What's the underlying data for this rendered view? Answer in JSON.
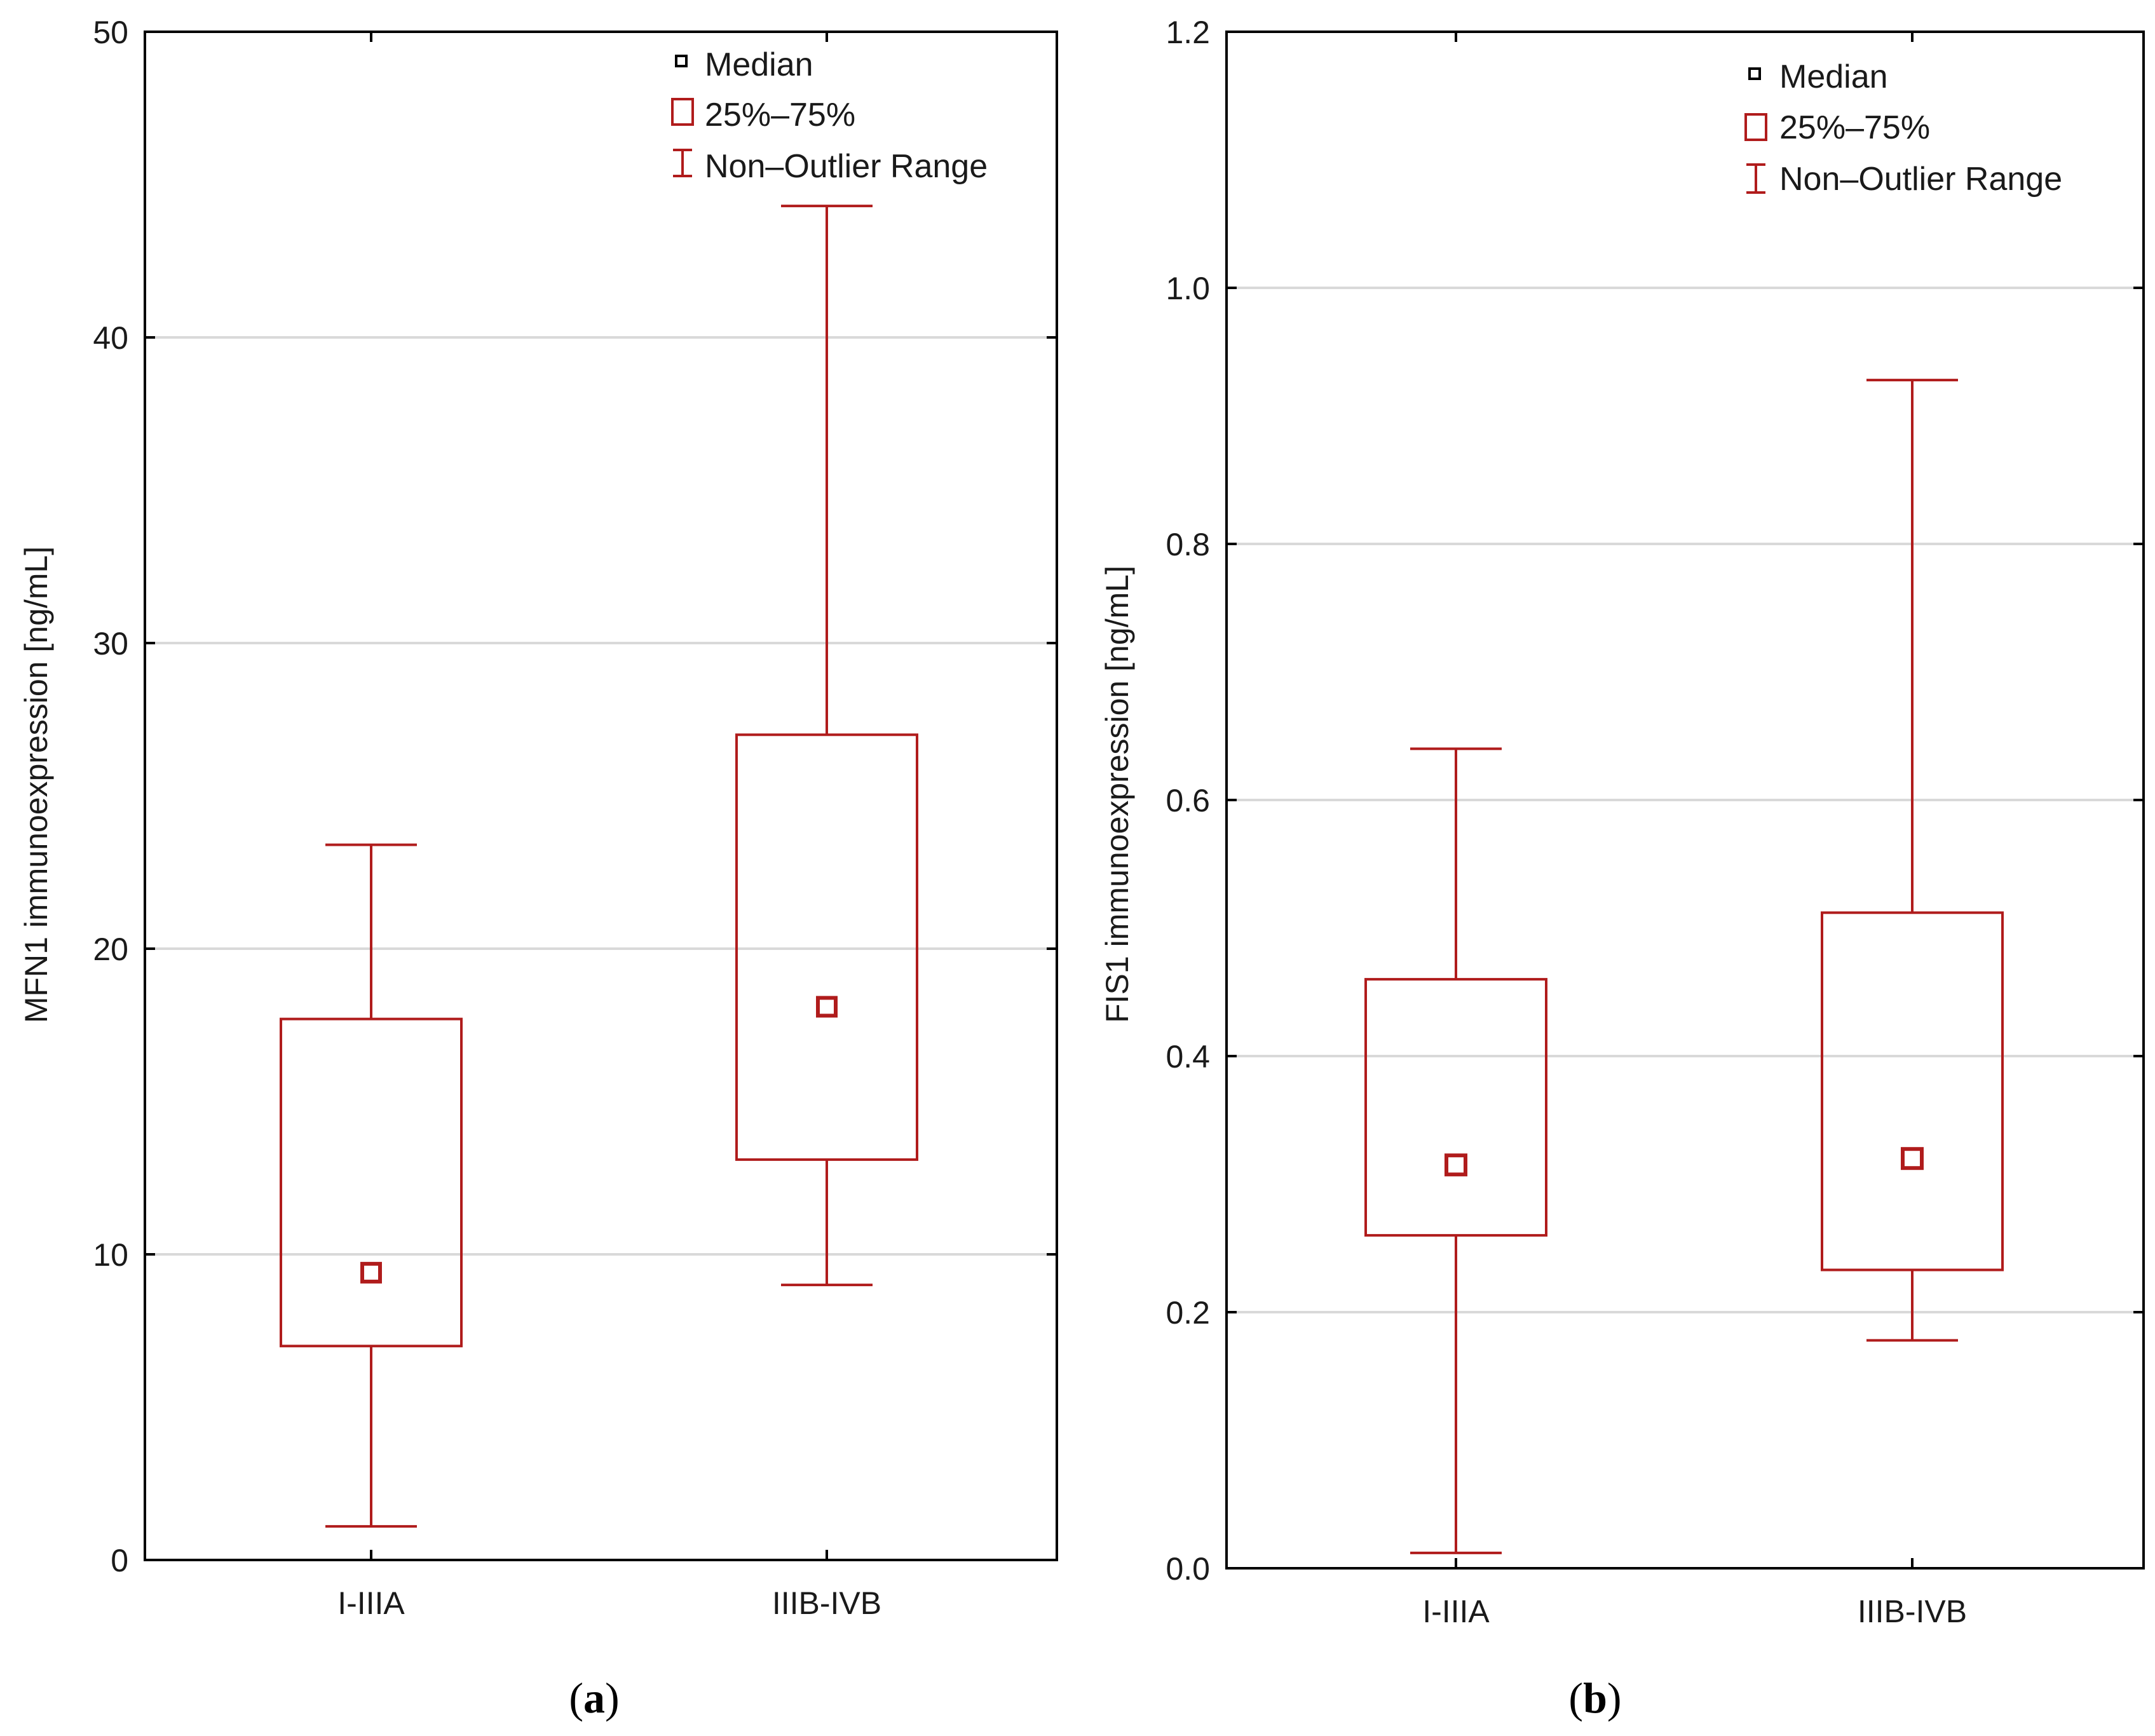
{
  "colors": {
    "box": "#b01c1c",
    "axis": "#000000",
    "grid": "#d9d9d9",
    "median_legend": "#000000"
  },
  "chart_data": [
    {
      "type": "boxplot",
      "panel": "a",
      "caption": {
        "open": "(",
        "letter": "a",
        "close": ")"
      },
      "ylabel": "MFN1 immunoexpression [ng/mL]",
      "xlabel": "",
      "ylim": [
        0,
        50
      ],
      "yticks": [
        "0",
        "10",
        "20",
        "30",
        "40",
        "50"
      ],
      "ytick_values": [
        0,
        10,
        20,
        30,
        40,
        50
      ],
      "grid": true,
      "categories": [
        "I-IIIA",
        "IIIB-IVB"
      ],
      "boxes": [
        {
          "category": "I-IIIA",
          "min": 1.1,
          "q1": 7.0,
          "median": 9.4,
          "q3": 17.7,
          "max": 23.4
        },
        {
          "category": "IIIB-IVB",
          "min": 9.0,
          "q1": 13.1,
          "median": 18.1,
          "q3": 27.0,
          "max": 44.3
        }
      ],
      "legend": {
        "placement": "top-right",
        "median": "Median",
        "iqr": "25%–75%",
        "range": "Non–Outlier Range"
      }
    },
    {
      "type": "boxplot",
      "panel": "b",
      "caption": {
        "open": "(",
        "letter": "b",
        "close": ")"
      },
      "ylabel": "FIS1  immunoexpression [ng/mL]",
      "xlabel": "",
      "ylim": [
        0,
        1.2
      ],
      "yticks": [
        "0.0",
        "0.2",
        "0.4",
        "0.6",
        "0.8",
        "1.0",
        "1.2"
      ],
      "ytick_values": [
        0,
        0.2,
        0.4,
        0.6,
        0.8,
        1.0,
        1.2
      ],
      "grid": true,
      "categories": [
        "I-IIIA",
        "IIIB-IVB"
      ],
      "boxes": [
        {
          "category": "I-IIIA",
          "min": 0.012,
          "q1": 0.26,
          "median": 0.315,
          "q3": 0.46,
          "max": 0.64
        },
        {
          "category": "IIIB-IVB",
          "min": 0.178,
          "q1": 0.233,
          "median": 0.32,
          "q3": 0.512,
          "max": 0.928
        }
      ],
      "legend": {
        "placement": "top-right",
        "median": "Median",
        "iqr": "25%–75%",
        "range": "Non–Outlier Range"
      }
    }
  ]
}
